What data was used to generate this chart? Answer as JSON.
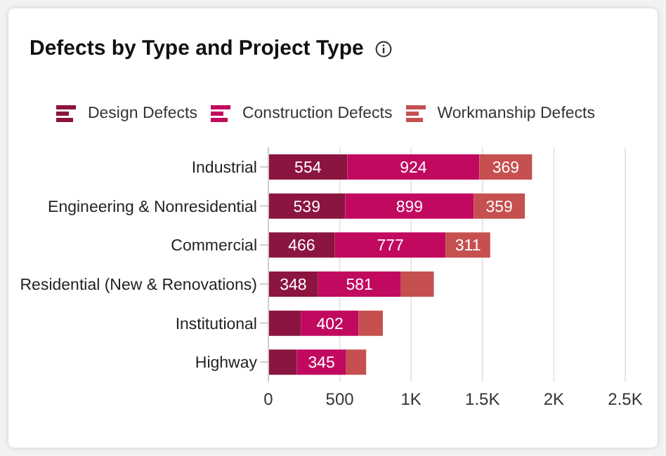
{
  "chart_data": {
    "type": "bar",
    "title": "Defects by Type and Project Type",
    "orientation": "horizontal",
    "stacked": true,
    "categories": [
      "Industrial",
      "Engineering & Nonresidential",
      "Commercial",
      "Residential (New & Renovations)",
      "Institutional",
      "Highway"
    ],
    "series": [
      {
        "name": "Design Defects",
        "color": "#8c1440",
        "values": [
          554,
          539,
          466,
          348,
          230,
          200
        ],
        "value_labels": [
          "554",
          "539",
          "466",
          "348",
          null,
          null
        ]
      },
      {
        "name": "Construction Defects",
        "color": "#c1095f",
        "values": [
          924,
          899,
          777,
          581,
          402,
          345
        ],
        "value_labels": [
          "924",
          "899",
          "777",
          "581",
          "402",
          "345"
        ]
      },
      {
        "name": "Workmanship Defects",
        "color": "#c5504f",
        "values": [
          369,
          359,
          311,
          230,
          170,
          140
        ],
        "value_labels": [
          "369",
          "359",
          "311",
          null,
          null,
          null
        ]
      }
    ],
    "xlim": [
      0,
      2500
    ],
    "xticks": [
      0,
      500,
      {
        "value": 1000,
        "label": "1K"
      },
      {
        "value": 1500,
        "label": "1.5K"
      },
      {
        "value": 2000,
        "label": "2K"
      },
      {
        "value": 2500,
        "label": "2.5K"
      }
    ],
    "grid": "x",
    "legend": "top"
  }
}
